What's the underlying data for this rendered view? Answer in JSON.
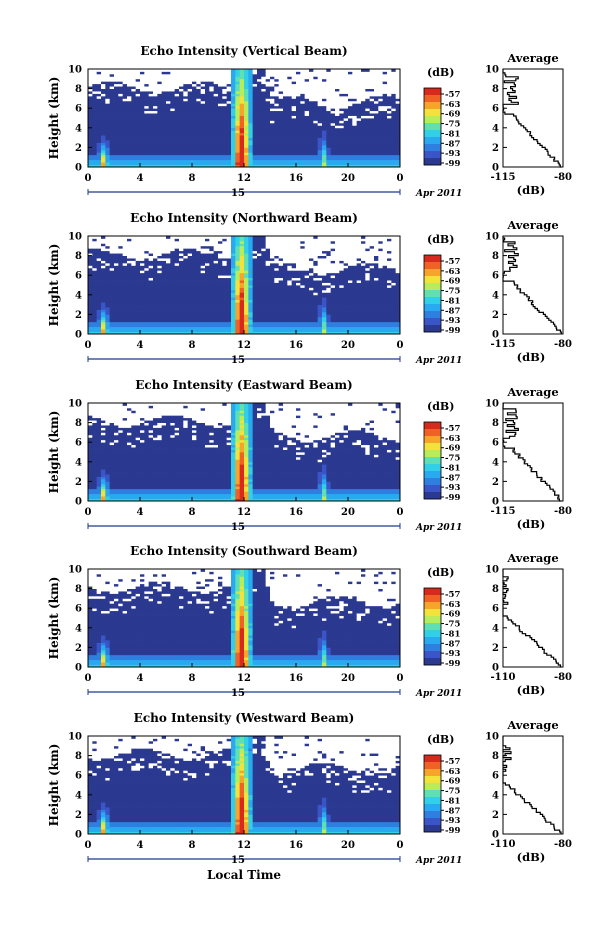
{
  "figure": {
    "xaxis_label": "Local Time",
    "date_label": "Apr 2011",
    "day_label": "15"
  },
  "colors": {
    "background_echo": "#2b3990",
    "no_data": "#ffffff",
    "colormap": [
      "#2b3990",
      "#3a55c8",
      "#2f7fe0",
      "#29a9f0",
      "#31d0e6",
      "#5fe0b4",
      "#b7ec5a",
      "#f4e23c",
      "#f7a52a",
      "#f06125",
      "#d62a1e"
    ]
  },
  "chart_data": [
    {
      "type": "heatmap",
      "title": "Echo Intensity (Vertical Beam)",
      "ylabel": "Height (km)",
      "xlabel": "Local Time",
      "x_ticks": [
        "0",
        "4",
        "8",
        "12",
        "16",
        "20",
        "0"
      ],
      "xlim": [
        0,
        24
      ],
      "y_ticks": [
        "0",
        "2",
        "4",
        "6",
        "8",
        "10"
      ],
      "ylim": [
        0,
        10
      ],
      "colorbar": {
        "label": "(dB)",
        "ticks": [
          "-57",
          "-63",
          "-69",
          "-75",
          "-81",
          "-87",
          "-93",
          "-99"
        ]
      },
      "average": {
        "title": "Average",
        "xlabel": "(dB)",
        "x_ticks": [
          "-115",
          "-80"
        ],
        "xlim": [
          -115,
          -80
        ],
        "y_ticks": [
          "0",
          "2",
          "4",
          "6",
          "8",
          "10"
        ]
      }
    },
    {
      "type": "heatmap",
      "title": "Echo Intensity (Northward Beam)",
      "ylabel": "Height (km)",
      "xlabel": "Local Time",
      "x_ticks": [
        "0",
        "4",
        "8",
        "12",
        "16",
        "20",
        "0"
      ],
      "xlim": [
        0,
        24
      ],
      "y_ticks": [
        "0",
        "2",
        "4",
        "6",
        "8",
        "10"
      ],
      "ylim": [
        0,
        10
      ],
      "colorbar": {
        "label": "(dB)",
        "ticks": [
          "-57",
          "-63",
          "-69",
          "-75",
          "-81",
          "-87",
          "-93",
          "-99"
        ]
      },
      "average": {
        "title": "Average",
        "xlabel": "(dB)",
        "x_ticks": [
          "-115",
          "-80"
        ],
        "xlim": [
          -115,
          -80
        ],
        "y_ticks": [
          "0",
          "2",
          "4",
          "6",
          "8",
          "10"
        ]
      }
    },
    {
      "type": "heatmap",
      "title": "Echo Intensity (Eastward Beam)",
      "ylabel": "Height (km)",
      "xlabel": "Local Time",
      "x_ticks": [
        "0",
        "4",
        "8",
        "12",
        "16",
        "20",
        "0"
      ],
      "xlim": [
        0,
        24
      ],
      "y_ticks": [
        "0",
        "2",
        "4",
        "6",
        "8",
        "10"
      ],
      "ylim": [
        0,
        10
      ],
      "colorbar": {
        "label": "(dB)",
        "ticks": [
          "-57",
          "-63",
          "-69",
          "-75",
          "-81",
          "-87",
          "-93",
          "-99"
        ]
      },
      "average": {
        "title": "Average",
        "xlabel": "(dB)",
        "x_ticks": [
          "-115",
          "-80"
        ],
        "xlim": [
          -115,
          -80
        ],
        "y_ticks": [
          "0",
          "2",
          "4",
          "6",
          "8",
          "10"
        ]
      }
    },
    {
      "type": "heatmap",
      "title": "Echo Intensity (Southward Beam)",
      "ylabel": "Height (km)",
      "xlabel": "Local Time",
      "x_ticks": [
        "0",
        "4",
        "8",
        "12",
        "16",
        "20",
        "0"
      ],
      "xlim": [
        0,
        24
      ],
      "y_ticks": [
        "0",
        "2",
        "4",
        "6",
        "8",
        "10"
      ],
      "ylim": [
        0,
        10
      ],
      "colorbar": {
        "label": "(dB)",
        "ticks": [
          "-57",
          "-63",
          "-69",
          "-75",
          "-81",
          "-87",
          "-93",
          "-99"
        ]
      },
      "average": {
        "title": "Average",
        "xlabel": "(dB)",
        "x_ticks": [
          "-110",
          "-80"
        ],
        "xlim": [
          -110,
          -80
        ],
        "y_ticks": [
          "0",
          "2",
          "4",
          "6",
          "8",
          "10"
        ]
      }
    },
    {
      "type": "heatmap",
      "title": "Echo Intensity (Westward Beam)",
      "ylabel": "Height (km)",
      "xlabel": "Local Time",
      "x_ticks": [
        "0",
        "4",
        "8",
        "12",
        "16",
        "20",
        "0"
      ],
      "xlim": [
        0,
        24
      ],
      "y_ticks": [
        "0",
        "2",
        "4",
        "6",
        "8",
        "10"
      ],
      "ylim": [
        0,
        10
      ],
      "colorbar": {
        "label": "(dB)",
        "ticks": [
          "-57",
          "-63",
          "-69",
          "-75",
          "-81",
          "-87",
          "-93",
          "-99"
        ]
      },
      "average": {
        "title": "Average",
        "xlabel": "(dB)",
        "x_ticks": [
          "-110",
          "-80"
        ],
        "xlim": [
          -110,
          -80
        ],
        "y_ticks": [
          "0",
          "2",
          "4",
          "6",
          "8",
          "10"
        ]
      }
    }
  ]
}
